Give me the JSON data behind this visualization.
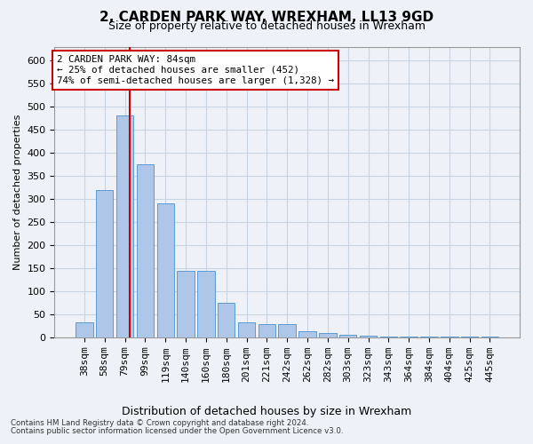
{
  "title": "2, CARDEN PARK WAY, WREXHAM, LL13 9GD",
  "subtitle": "Size of property relative to detached houses in Wrexham",
  "xlabel": "Distribution of detached houses by size in Wrexham",
  "ylabel": "Number of detached properties",
  "bar_labels": [
    "38sqm",
    "58sqm",
    "79sqm",
    "99sqm",
    "119sqm",
    "140sqm",
    "160sqm",
    "180sqm",
    "201sqm",
    "221sqm",
    "242sqm",
    "262sqm",
    "282sqm",
    "303sqm",
    "323sqm",
    "343sqm",
    "364sqm",
    "384sqm",
    "404sqm",
    "425sqm",
    "445sqm"
  ],
  "bar_values": [
    32,
    320,
    480,
    375,
    290,
    143,
    143,
    75,
    32,
    28,
    28,
    14,
    9,
    5,
    4,
    1,
    1,
    1,
    1,
    1,
    1
  ],
  "bar_color": "#aec6e8",
  "bar_edge_color": "#5b9bd5",
  "grid_color": "#c8d4e4",
  "ylim": [
    0,
    630
  ],
  "yticks": [
    0,
    50,
    100,
    150,
    200,
    250,
    300,
    350,
    400,
    450,
    500,
    550,
    600
  ],
  "vline_color": "#cc0000",
  "vline_x_data": 2.25,
  "annotation_line1": "2 CARDEN PARK WAY: 84sqm",
  "annotation_line2": "← 25% of detached houses are smaller (452)",
  "annotation_line3": "74% of semi-detached houses are larger (1,328) →",
  "annotation_box_color": "#ffffff",
  "annotation_border_color": "#cc0000",
  "footnote1": "Contains HM Land Registry data © Crown copyright and database right 2024.",
  "footnote2": "Contains public sector information licensed under the Open Government Licence v3.0.",
  "background_color": "#eef2f8",
  "title_fontsize": 11,
  "subtitle_fontsize": 9,
  "tick_fontsize": 8,
  "ylabel_fontsize": 8,
  "xlabel_fontsize": 9
}
